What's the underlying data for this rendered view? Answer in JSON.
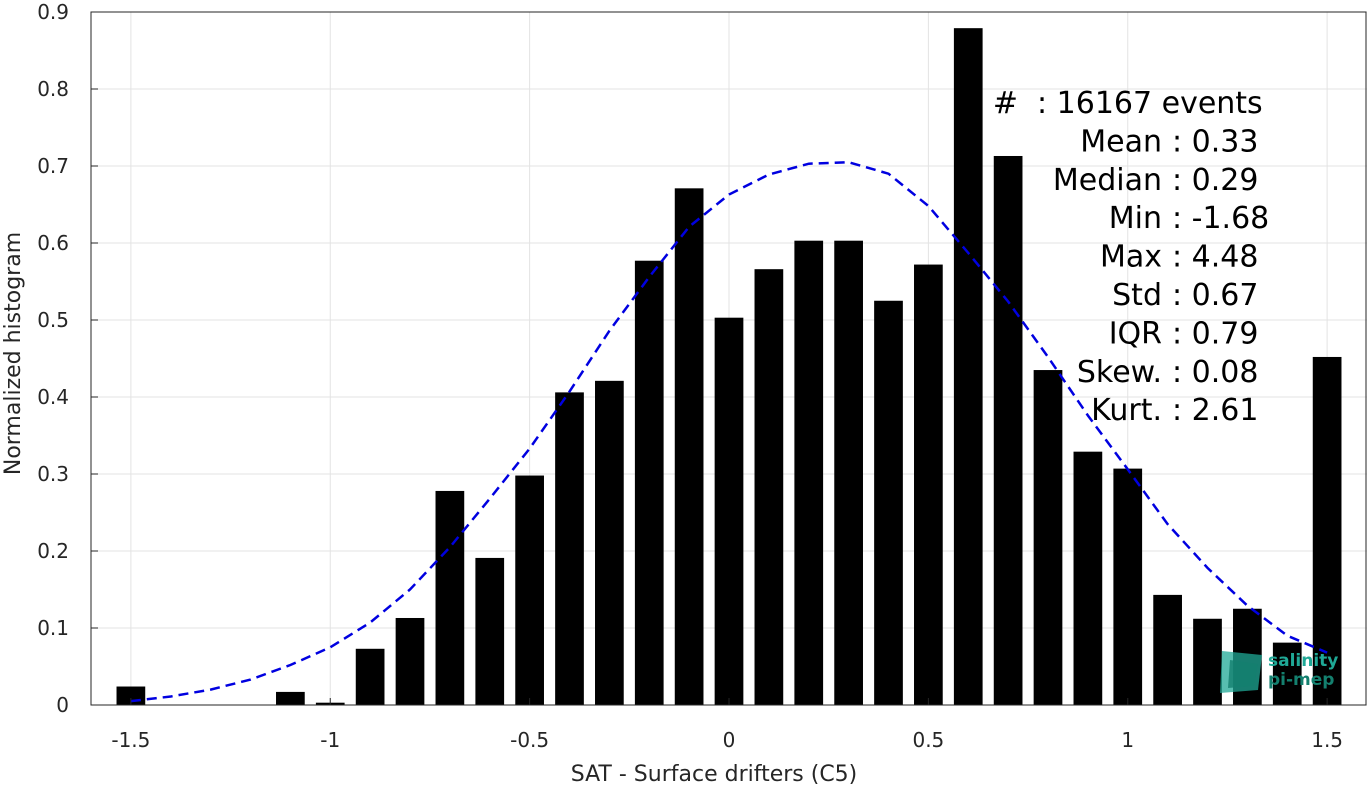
{
  "chart_data": {
    "type": "bar",
    "xlabel": "SAT - Surface drifters (C5)",
    "ylabel": "Normalized histogram",
    "xlim": [
      -1.6,
      1.6
    ],
    "ylim": [
      0,
      0.9
    ],
    "grid": true,
    "x_ticks": [
      "-1.5",
      "-1",
      "-0.5",
      "0",
      "0.5",
      "1",
      "1.5"
    ],
    "y_ticks": [
      "0",
      "0.1",
      "0.2",
      "0.3",
      "0.4",
      "0.5",
      "0.6",
      "0.7",
      "0.8",
      "0.9"
    ],
    "bars": {
      "x": [
        -1.5,
        -1.1,
        -1.0,
        -0.9,
        -0.8,
        -0.7,
        -0.6,
        -0.5,
        -0.4,
        -0.3,
        -0.2,
        -0.1,
        0.0,
        0.1,
        0.2,
        0.3,
        0.4,
        0.5,
        0.6,
        0.7,
        0.8,
        0.9,
        1.0,
        1.1,
        1.2,
        1.3,
        1.4,
        1.5
      ],
      "values": [
        0.024,
        0.017,
        0.003,
        0.073,
        0.113,
        0.278,
        0.191,
        0.298,
        0.406,
        0.421,
        0.577,
        0.671,
        0.503,
        0.566,
        0.603,
        0.603,
        0.525,
        0.572,
        0.879,
        0.713,
        0.435,
        0.329,
        0.307,
        0.143,
        0.112,
        0.125,
        0.081,
        0.452
      ],
      "color": "#000000"
    },
    "fit_curve": {
      "style": "dashed",
      "color": "#0000e0",
      "x": [
        -1.5,
        -1.4,
        -1.3,
        -1.2,
        -1.1,
        -1.0,
        -0.9,
        -0.8,
        -0.7,
        -0.6,
        -0.5,
        -0.4,
        -0.3,
        -0.2,
        -0.1,
        0.0,
        0.1,
        0.2,
        0.3,
        0.4,
        0.5,
        0.6,
        0.7,
        0.8,
        0.9,
        1.0,
        1.1,
        1.2,
        1.3,
        1.4,
        1.5
      ],
      "values": [
        0.005,
        0.011,
        0.02,
        0.033,
        0.052,
        0.075,
        0.107,
        0.15,
        0.205,
        0.268,
        0.333,
        0.407,
        0.486,
        0.556,
        0.621,
        0.663,
        0.689,
        0.703,
        0.705,
        0.69,
        0.648,
        0.587,
        0.524,
        0.452,
        0.376,
        0.306,
        0.235,
        0.178,
        0.129,
        0.09,
        0.068
      ]
    }
  },
  "stats": [
    {
      "label": "#",
      "value": ": 16167 events"
    },
    {
      "label": "Mean",
      "value": ": 0.33"
    },
    {
      "label": "Median",
      "value": ": 0.29"
    },
    {
      "label": "Min",
      "value": ": -1.68"
    },
    {
      "label": "Max",
      "value": ": 4.48"
    },
    {
      "label": "Std",
      "value": ": 0.67"
    },
    {
      "label": "IQR",
      "value": ": 0.79"
    },
    {
      "label": "Skew.",
      "value": ": 0.08"
    },
    {
      "label": "Kurt.",
      "value": ": 2.61"
    }
  ],
  "logo": {
    "line1": "salinity",
    "line2": "pi-mep",
    "color": "#1fa896"
  }
}
